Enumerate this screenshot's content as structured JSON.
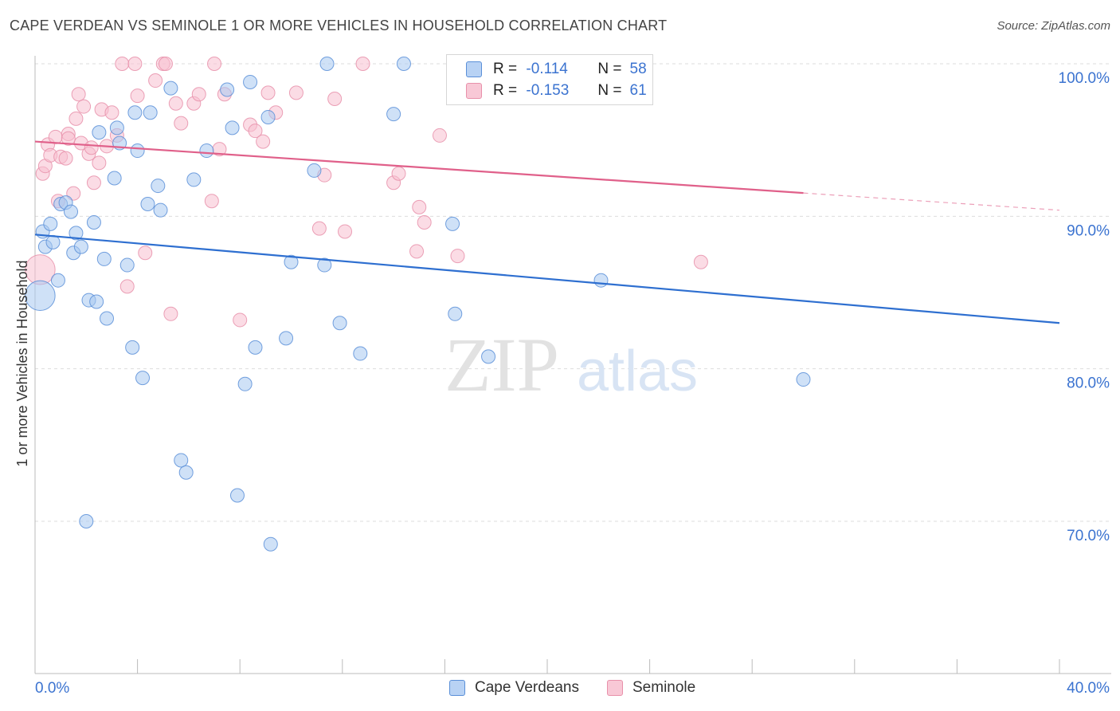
{
  "header": {
    "title": "CAPE VERDEAN VS SEMINOLE 1 OR MORE VEHICLES IN HOUSEHOLD CORRELATION CHART",
    "source": "Source: ZipAtlas.com"
  },
  "watermark": {
    "zip": "ZIP",
    "atlas": "atlas"
  },
  "legend": {
    "rows": [
      {
        "r_label": "R =",
        "r_value": "-0.114",
        "n_label": "N =",
        "n_value": "58"
      },
      {
        "r_label": "R =",
        "r_value": "-0.153",
        "n_label": "N =",
        "n_value": "61"
      }
    ]
  },
  "bottom_legend": {
    "series1": "Cape Verdeans",
    "series2": "Seminole"
  },
  "colors": {
    "blue_fill": "#a8c8f0",
    "blue_stroke": "#5a8fd8",
    "blue_line": "#2e6fd0",
    "pink_fill": "#f8c0d0",
    "pink_stroke": "#e890aa",
    "pink_line": "#e0608a",
    "axis_text": "#3b73d0",
    "grid": "#dddddd"
  },
  "chart_data": {
    "type": "scatter",
    "title": "CAPE VERDEAN VS SEMINOLE 1 OR MORE VEHICLES IN HOUSEHOLD CORRELATION CHART",
    "xlabel": "",
    "ylabel": "1 or more Vehicles in Household",
    "xlim": [
      0,
      40
    ],
    "ylim": [
      60,
      101
    ],
    "x_tick_labels": [
      "0.0%",
      "40.0%"
    ],
    "y_tick_labels": [
      "100.0%",
      "90.0%",
      "80.0%",
      "70.0%"
    ],
    "y_ticks": [
      100,
      90,
      80,
      70
    ],
    "grid": true,
    "legend_placement": "top-center",
    "series": [
      {
        "name": "Cape Verdeans",
        "r": -0.114,
        "n": 58,
        "trend": {
          "x": [
            0,
            40
          ],
          "y": [
            88.8,
            83.0
          ],
          "dashed_from": null
        },
        "points": [
          [
            0.2,
            84.8,
            2.2
          ],
          [
            0.3,
            89.0,
            1
          ],
          [
            0.4,
            88.0,
            1
          ],
          [
            0.6,
            89.5,
            1
          ],
          [
            0.7,
            88.3,
            1
          ],
          [
            0.9,
            85.8,
            1
          ],
          [
            1.0,
            90.8,
            1
          ],
          [
            1.2,
            90.9,
            1
          ],
          [
            1.4,
            90.3,
            1
          ],
          [
            1.5,
            87.6,
            1
          ],
          [
            1.6,
            88.9,
            1
          ],
          [
            1.8,
            88.0,
            1
          ],
          [
            2.0,
            70.0,
            1
          ],
          [
            2.1,
            84.5,
            1
          ],
          [
            2.3,
            89.6,
            1
          ],
          [
            2.4,
            84.4,
            1
          ],
          [
            2.5,
            95.5,
            1
          ],
          [
            2.7,
            87.2,
            1
          ],
          [
            2.8,
            83.3,
            1
          ],
          [
            3.1,
            92.5,
            1
          ],
          [
            3.2,
            95.8,
            1
          ],
          [
            3.6,
            86.8,
            1
          ],
          [
            3.8,
            81.4,
            1
          ],
          [
            3.9,
            96.8,
            1
          ],
          [
            4.0,
            94.3,
            1
          ],
          [
            4.2,
            79.4,
            1
          ],
          [
            4.4,
            90.8,
            1
          ],
          [
            4.5,
            96.8,
            1
          ],
          [
            4.8,
            92.0,
            1
          ],
          [
            4.9,
            90.4,
            1
          ],
          [
            5.3,
            98.4,
            1
          ],
          [
            5.7,
            74.0,
            1
          ],
          [
            5.9,
            73.2,
            1
          ],
          [
            6.2,
            92.4,
            1
          ],
          [
            6.7,
            94.3,
            1
          ],
          [
            7.5,
            98.3,
            1
          ],
          [
            7.7,
            95.8,
            1
          ],
          [
            7.9,
            71.7,
            1
          ],
          [
            8.2,
            79.0,
            1
          ],
          [
            8.4,
            98.8,
            1
          ],
          [
            8.6,
            81.4,
            1
          ],
          [
            9.1,
            96.5,
            1
          ],
          [
            9.2,
            68.5,
            1
          ],
          [
            9.8,
            82.0,
            1
          ],
          [
            10.0,
            87.0,
            1
          ],
          [
            10.9,
            93.0,
            1
          ],
          [
            11.3,
            86.8,
            1
          ],
          [
            11.4,
            100.0,
            1
          ],
          [
            11.9,
            83.0,
            1
          ],
          [
            12.7,
            81.0,
            1
          ],
          [
            14.0,
            96.7,
            1
          ],
          [
            14.4,
            100.0,
            1
          ],
          [
            16.3,
            89.5,
            1
          ],
          [
            16.4,
            83.6,
            1
          ],
          [
            17.7,
            80.8,
            1
          ],
          [
            22.1,
            85.8,
            1
          ],
          [
            30.0,
            79.3,
            1
          ],
          [
            3.3,
            94.8,
            1
          ]
        ]
      },
      {
        "name": "Seminole",
        "r": -0.153,
        "n": 61,
        "trend": {
          "x": [
            0,
            40
          ],
          "y": [
            94.9,
            90.4
          ],
          "dashed_from": 30
        },
        "points": [
          [
            0.2,
            86.5,
            2.2
          ],
          [
            0.3,
            92.8,
            1
          ],
          [
            0.4,
            93.3,
            1
          ],
          [
            0.5,
            94.7,
            1
          ],
          [
            0.6,
            94.0,
            1
          ],
          [
            0.8,
            95.2,
            1
          ],
          [
            0.9,
            91.0,
            1
          ],
          [
            1.0,
            93.9,
            1
          ],
          [
            1.2,
            93.8,
            1
          ],
          [
            1.3,
            95.4,
            1
          ],
          [
            1.5,
            91.5,
            1
          ],
          [
            1.6,
            96.4,
            1
          ],
          [
            1.7,
            98.0,
            1
          ],
          [
            1.8,
            94.8,
            1
          ],
          [
            1.9,
            97.2,
            1
          ],
          [
            2.1,
            94.1,
            1
          ],
          [
            2.2,
            94.5,
            1
          ],
          [
            2.3,
            92.2,
            1
          ],
          [
            2.5,
            93.5,
            1
          ],
          [
            2.6,
            97.0,
            1
          ],
          [
            2.8,
            94.6,
            1
          ],
          [
            3.0,
            96.8,
            1
          ],
          [
            3.2,
            95.3,
            1
          ],
          [
            3.4,
            100.0,
            1
          ],
          [
            3.6,
            85.4,
            1
          ],
          [
            3.9,
            100.0,
            1
          ],
          [
            4.0,
            97.9,
            1
          ],
          [
            4.3,
            87.6,
            1
          ],
          [
            4.7,
            98.9,
            1
          ],
          [
            5.0,
            100.0,
            1
          ],
          [
            5.1,
            100.0,
            1
          ],
          [
            5.3,
            83.6,
            1
          ],
          [
            5.5,
            97.4,
            1
          ],
          [
            5.7,
            96.1,
            1
          ],
          [
            6.2,
            97.4,
            1
          ],
          [
            6.9,
            91.0,
            1
          ],
          [
            7.0,
            100.0,
            1
          ],
          [
            7.2,
            94.4,
            1
          ],
          [
            7.4,
            98.0,
            1
          ],
          [
            8.0,
            83.2,
            1
          ],
          [
            8.4,
            96.0,
            1
          ],
          [
            8.6,
            95.6,
            1
          ],
          [
            8.9,
            94.9,
            1
          ],
          [
            9.1,
            98.1,
            1
          ],
          [
            9.4,
            96.8,
            1
          ],
          [
            10.2,
            98.1,
            1
          ],
          [
            11.1,
            89.2,
            1
          ],
          [
            11.3,
            92.7,
            1
          ],
          [
            11.7,
            97.7,
            1
          ],
          [
            12.8,
            100.0,
            1
          ],
          [
            14.0,
            92.2,
            1
          ],
          [
            14.2,
            92.8,
            1
          ],
          [
            14.9,
            87.7,
            1
          ],
          [
            15.0,
            90.6,
            1
          ],
          [
            15.2,
            89.6,
            1
          ],
          [
            15.8,
            95.3,
            1
          ],
          [
            16.5,
            87.4,
            1
          ],
          [
            26.0,
            87.0,
            1
          ],
          [
            1.3,
            95.1,
            1
          ],
          [
            6.4,
            98.0,
            1
          ],
          [
            12.1,
            89.0,
            1
          ]
        ]
      }
    ]
  }
}
